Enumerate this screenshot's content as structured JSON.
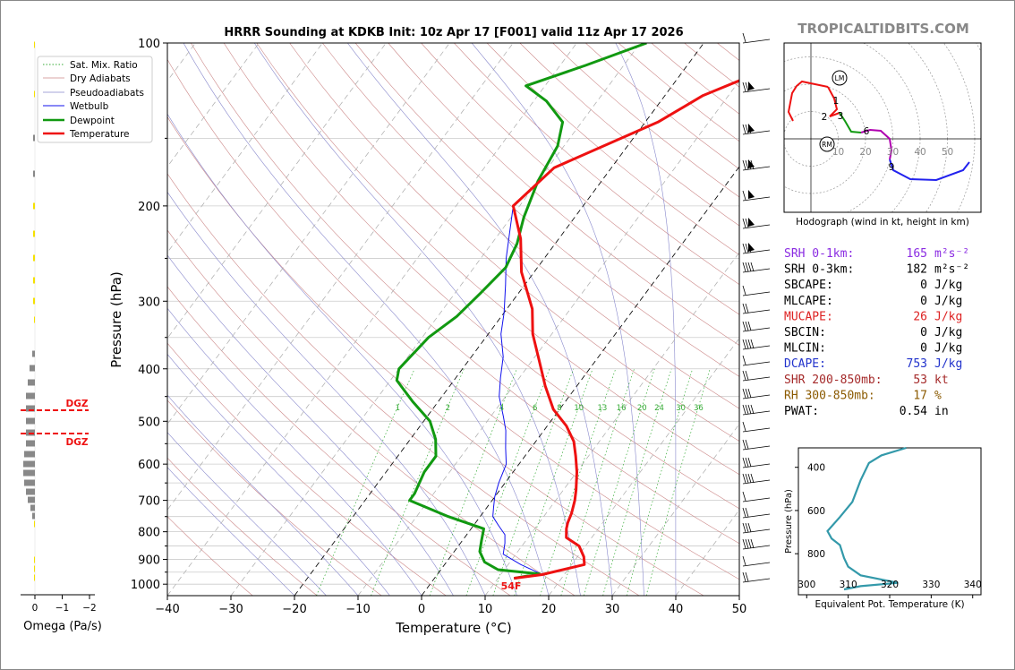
{
  "brand": "TROPICALTIDBITS.COM",
  "title": "HRRR Sounding at KDKB Init: 10z Apr 17 [F001] valid 11z Apr 17 2026",
  "chart_data": [
    {
      "type": "line",
      "name": "skewt",
      "xlabel": "Temperature (°C)",
      "ylabel": "Pressure (hPa)",
      "xlim": [
        -40,
        50
      ],
      "ylim": [
        1050,
        100
      ],
      "y_scale": "log",
      "x_ticks": [
        "−40",
        "−30",
        "−20",
        "−10",
        "0",
        "10",
        "20",
        "30",
        "40",
        "50"
      ],
      "y_ticks": [
        "100",
        "200",
        "300",
        "400",
        "500",
        "600",
        "700",
        "800",
        "900",
        "1000"
      ],
      "grid": true,
      "legend_position": "top-left",
      "legend": [
        "Sat. Mix. Ratio",
        "Dry Adiabats",
        "Pseudoadiabats",
        "Wetbulb",
        "Dewpoint",
        "Temperature"
      ],
      "mixing_ratio_labels": [
        "1",
        "2",
        "4",
        "6",
        "8",
        "10",
        "13",
        "16",
        "20",
        "24",
        "30",
        "36"
      ],
      "surface_label": "54F",
      "colors": {
        "temperature": "#ee1111",
        "dewpoint": "#119911",
        "wetbulb": "#1111ee",
        "dry": "#cc8888",
        "moist": "#8888cc",
        "mix": "#33aa33"
      },
      "series": [
        {
          "name": "Temperature",
          "points": [
            [
              12.5,
              975
            ],
            [
              16.5,
              960
            ],
            [
              22,
              920
            ],
            [
              21,
              890
            ],
            [
              19,
              850
            ],
            [
              16,
              820
            ],
            [
              15,
              790
            ],
            [
              14.5,
              770
            ],
            [
              14,
              740
            ],
            [
              13,
              700
            ],
            [
              12,
              670
            ],
            [
              10,
              620
            ],
            [
              8,
              580
            ],
            [
              6,
              545
            ],
            [
              3,
              510
            ],
            [
              -1,
              475
            ],
            [
              -5,
              430
            ],
            [
              -9,
              385
            ],
            [
              -13,
              345
            ],
            [
              -16,
              310
            ],
            [
              -22,
              265
            ],
            [
              -26,
              230
            ],
            [
              -31,
              200
            ],
            [
              -29,
              170
            ],
            [
              -18,
              140
            ],
            [
              -14,
              125
            ],
            [
              -6,
              110
            ],
            [
              0,
              100
            ]
          ]
        },
        {
          "name": "Dewpoint",
          "points": [
            [
              12.5,
              975
            ],
            [
              16,
              957
            ],
            [
              9,
              940
            ],
            [
              6,
              910
            ],
            [
              4,
              870
            ],
            [
              3,
              830
            ],
            [
              2,
              790
            ],
            [
              -5,
              750
            ],
            [
              -13,
              700
            ],
            [
              -13,
              680
            ],
            [
              -14,
              620
            ],
            [
              -14,
              580
            ],
            [
              -16,
              540
            ],
            [
              -19,
              500
            ],
            [
              -24,
              460
            ],
            [
              -29,
              420
            ],
            [
              -30,
              400
            ],
            [
              -29,
              350
            ],
            [
              -27,
              320
            ],
            [
              -26,
              290
            ],
            [
              -25,
              260
            ],
            [
              -26,
              235
            ],
            [
              -28,
              210
            ],
            [
              -30,
              180
            ],
            [
              -31,
              155
            ],
            [
              -33,
              140
            ],
            [
              -38,
              128
            ],
            [
              -43,
              120
            ],
            [
              -36,
              110
            ],
            [
              -29,
              100
            ]
          ]
        },
        {
          "name": "Wetbulb",
          "points": [
            [
              12.5,
              975
            ],
            [
              16,
              955
            ],
            [
              12,
              920
            ],
            [
              8,
              880
            ],
            [
              7,
              840
            ],
            [
              6,
              810
            ],
            [
              4,
              780
            ],
            [
              2,
              750
            ],
            [
              1,
              720
            ],
            [
              0,
              690
            ],
            [
              -1,
              650
            ],
            [
              -2,
              600
            ],
            [
              -4,
              560
            ],
            [
              -6,
              520
            ],
            [
              -8,
              490
            ],
            [
              -11,
              450
            ],
            [
              -13,
              415
            ],
            [
              -15,
              380
            ],
            [
              -18,
              345
            ],
            [
              -20,
              315
            ],
            [
              -23,
              280
            ],
            [
              -26,
              250
            ],
            [
              -31,
              200
            ],
            [
              -29,
              170
            ],
            [
              -18,
              140
            ],
            [
              -14,
              125
            ],
            [
              -6,
              110
            ],
            [
              0,
              100
            ]
          ]
        }
      ]
    },
    {
      "type": "bar",
      "name": "omega",
      "xlabel": "Omega (Pa/s)",
      "x_ticks": [
        "0",
        "−1",
        "−2"
      ],
      "dgz_label": "DGZ"
    },
    {
      "type": "line",
      "name": "hodograph",
      "title": "Hodograph (wind in kt, height in km)",
      "ring_labels": [
        "10",
        "20",
        "30",
        "40",
        "50"
      ],
      "height_labels": [
        "1",
        "2",
        "3",
        "6",
        "9"
      ],
      "motion_labels": [
        "LM",
        "RM"
      ]
    },
    {
      "type": "line",
      "name": "theta_e",
      "xlabel": "Equivalent Pot. Temperature (K)",
      "ylabel": "Pressure (hPa)",
      "xlim": [
        298,
        342
      ],
      "ylim": [
        990,
        310
      ],
      "x_ticks": [
        "300",
        "310",
        "320",
        "330",
        "340"
      ],
      "y_ticks": [
        "400",
        "600",
        "800"
      ],
      "points": [
        [
          324,
          310
        ],
        [
          318,
          345
        ],
        [
          315,
          380
        ],
        [
          313,
          460
        ],
        [
          311,
          560
        ],
        [
          308,
          630
        ],
        [
          305,
          695
        ],
        [
          306,
          730
        ],
        [
          308,
          760
        ],
        [
          309,
          820
        ],
        [
          310,
          860
        ],
        [
          313,
          900
        ],
        [
          322,
          935
        ],
        [
          313,
          950
        ],
        [
          309,
          965
        ]
      ]
    }
  ],
  "indices": [
    {
      "label": "SRH 0-1km:",
      "value": "165",
      "unit": "m²s⁻²",
      "color": "#8a2be2"
    },
    {
      "label": "SRH 0-3km:",
      "value": "182",
      "unit": "m²s⁻²",
      "color": "#000000"
    },
    {
      "label": "SBCAPE:",
      "value": "0",
      "unit": "J/kg",
      "color": "#000000"
    },
    {
      "label": "MLCAPE:",
      "value": "0",
      "unit": "J/kg",
      "color": "#000000"
    },
    {
      "label": "MUCAPE:",
      "value": "26",
      "unit": "J/kg",
      "color": "#dd2222"
    },
    {
      "label": "SBCIN:",
      "value": "0",
      "unit": "J/kg",
      "color": "#000000"
    },
    {
      "label": "MLCIN:",
      "value": "0",
      "unit": "J/kg",
      "color": "#000000"
    },
    {
      "label": "DCAPE:",
      "value": "753",
      "unit": "J/kg",
      "color": "#2233cc"
    },
    {
      "label": "SHR 200-850mb:",
      "value": "53",
      "unit": "kt",
      "color": "#a52a2a"
    },
    {
      "label": "RH 300-850mb:",
      "value": "17",
      "unit": "%",
      "color": "#8b5a00"
    },
    {
      "label": "PWAT:",
      "value": "0.54",
      "unit": "in",
      "color": "#000000"
    }
  ]
}
